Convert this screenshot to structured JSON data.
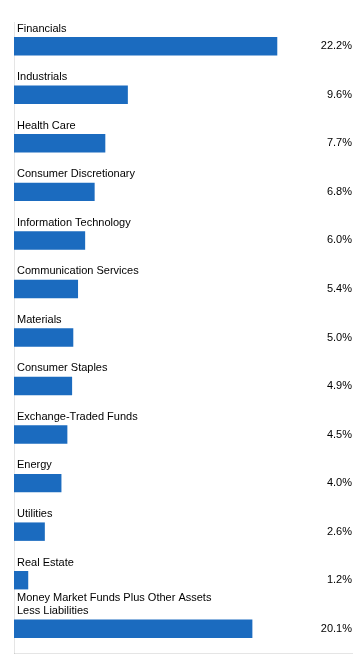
{
  "chart_data": {
    "type": "bar",
    "orientation": "horizontal",
    "categories": [
      "Financials",
      "Industrials",
      "Health Care",
      "Consumer Discretionary",
      "Information Technology",
      "Communication Services",
      "Materials",
      "Consumer Staples",
      "Exchange-Traded Funds",
      "Energy",
      "Utilities",
      "Real Estate",
      "Money Market Funds Plus Other Assets\nLess Liabilities"
    ],
    "values": [
      22.2,
      9.6,
      7.7,
      6.8,
      6.0,
      5.4,
      5.0,
      4.9,
      4.5,
      4.0,
      2.6,
      1.2,
      20.1
    ],
    "value_labels": [
      "22.2%",
      "9.6%",
      "7.7%",
      "6.8%",
      "6.0%",
      "5.4%",
      "5.0%",
      "4.9%",
      "4.5%",
      "4.0%",
      "2.6%",
      "1.2%",
      "20.1%"
    ],
    "data_labels": true,
    "color": "#1B6BBF",
    "xlim": [
      0,
      28.5
    ],
    "grid": false,
    "tick_labels": false
  }
}
